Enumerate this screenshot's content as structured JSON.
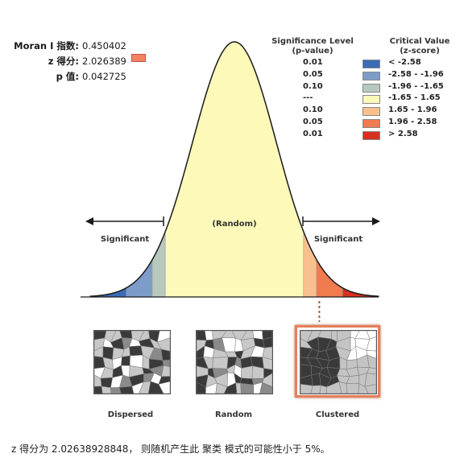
{
  "stats": {
    "moran_label": "Moran I 指数:",
    "moran_value": "0.450402",
    "z_label": "z 得分:",
    "z_value": "2.026389",
    "p_label": "p 值:",
    "p_value": "0.042725",
    "z_marker_color": "#f4845f"
  },
  "legend": {
    "header_left_line1": "Significance Level",
    "header_left_line2": "(p-value)",
    "header_right_line1": "Critical Value",
    "header_right_line2": "(z-score)",
    "rows": [
      {
        "p": "0.01",
        "z": "< -2.58",
        "color": "#3b6bb5"
      },
      {
        "p": "0.05",
        "z": "-2.58 - -1.96",
        "color": "#7d9cc9"
      },
      {
        "p": "0.10",
        "z": "-1.96 - -1.65",
        "color": "#b7c8bd"
      },
      {
        "p": "---",
        "z": "-1.65 - 1.65",
        "color": "#fcf9b9"
      },
      {
        "p": "0.10",
        "z": "1.65 - 1.96",
        "color": "#f9c08e"
      },
      {
        "p": "0.05",
        "z": "1.96 - 2.58",
        "color": "#f07b4f"
      },
      {
        "p": "0.01",
        "z": "> 2.58",
        "color": "#d7301f"
      }
    ]
  },
  "curve": {
    "random_label": "(Random)",
    "significant_left": "Significant",
    "significant_right": "Significant",
    "observed_z": 2.026389
  },
  "maps": {
    "dispersed_label": "Dispersed",
    "random_label": "Random",
    "clustered_label": "Clustered"
  },
  "conclusion": "z 得分为 2.02638928848， 则随机产生此 聚类 模式的可能性小于 5%。"
}
